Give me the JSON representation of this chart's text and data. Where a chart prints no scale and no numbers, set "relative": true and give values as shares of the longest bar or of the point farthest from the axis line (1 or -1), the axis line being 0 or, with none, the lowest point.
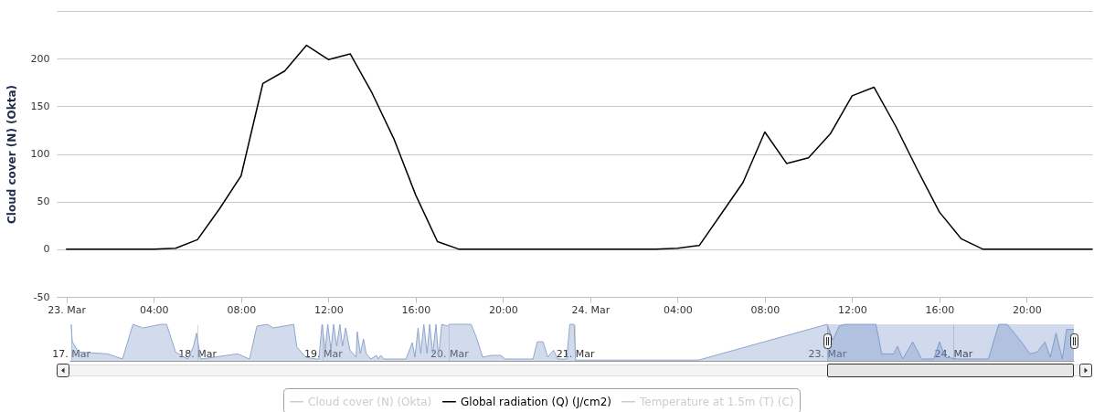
{
  "chart_data": [
    {
      "type": "line",
      "ylabel": "Cloud cover (N) (Okta)",
      "x": [
        "--03-23T00:00",
        "--03-23T01:00",
        "--03-23T02:00",
        "--03-23T03:00",
        "--03-23T04:00",
        "--03-23T05:00",
        "--03-23T06:00",
        "--03-23T07:00",
        "--03-23T08:00",
        "--03-23T09:00",
        "--03-23T10:00",
        "--03-23T11:00",
        "--03-23T12:00",
        "--03-23T13:00",
        "--03-23T14:00",
        "--03-23T15:00",
        "--03-23T16:00",
        "--03-23T17:00",
        "--03-23T18:00",
        "--03-23T19:00",
        "--03-23T20:00",
        "--03-23T21:00",
        "--03-23T22:00",
        "--03-23T23:00",
        "--03-24T00:00",
        "--03-24T01:00",
        "--03-24T02:00",
        "--03-24T03:00",
        "--03-24T04:00",
        "--03-24T05:00",
        "--03-24T06:00",
        "--03-24T07:00",
        "--03-24T08:00",
        "--03-24T09:00",
        "--03-24T10:00",
        "--03-24T11:00",
        "--03-24T12:00",
        "--03-24T13:00",
        "--03-24T14:00",
        "--03-24T15:00",
        "--03-24T16:00",
        "--03-24T17:00",
        "--03-24T18:00",
        "--03-24T19:00",
        "--03-24T20:00",
        "--03-24T21:00",
        "--03-24T22:00",
        "--03-24T23:00"
      ],
      "xlim": [
        "--03-22T23:33",
        "--03-24T23:00"
      ],
      "xticks": [
        {
          "value": "--03-23T00:00",
          "label": "23. Mar"
        },
        {
          "value": "--03-23T04:00",
          "label": "04:00"
        },
        {
          "value": "--03-23T08:00",
          "label": "08:00"
        },
        {
          "value": "--03-23T12:00",
          "label": "12:00"
        },
        {
          "value": "--03-23T16:00",
          "label": "16:00"
        },
        {
          "value": "--03-23T20:00",
          "label": "20:00"
        },
        {
          "value": "--03-24T00:00",
          "label": "24. Mar"
        },
        {
          "value": "--03-24T04:00",
          "label": "04:00"
        },
        {
          "value": "--03-24T08:00",
          "label": "08:00"
        },
        {
          "value": "--03-24T12:00",
          "label": "12:00"
        },
        {
          "value": "--03-24T16:00",
          "label": "16:00"
        },
        {
          "value": "--03-24T20:00",
          "label": "20:00"
        }
      ],
      "ylim": [
        -50,
        250
      ],
      "yticks": [
        -50,
        0,
        50,
        100,
        150,
        200,
        {
          "value": 250,
          "label": null
        }
      ],
      "grid": "y",
      "legend": "bottom",
      "series": [
        {
          "name": "Cloud cover (N) (Okta)",
          "color": "#cccccc",
          "values": [
            null,
            null,
            null,
            null,
            null,
            null,
            null,
            null,
            null,
            null,
            null,
            null,
            null,
            null,
            null,
            null,
            null,
            null,
            null,
            null,
            null,
            null,
            null,
            null,
            null,
            null,
            null,
            null,
            null,
            null,
            null,
            null,
            null,
            null,
            null,
            null,
            null,
            null,
            null,
            null,
            null,
            null,
            null,
            null,
            null,
            null,
            null,
            null
          ]
        },
        {
          "name": "Global radiation (Q) (J/cm2)",
          "color": "#000000",
          "values": [
            0,
            0,
            0,
            0,
            0,
            1,
            10,
            42,
            77,
            174,
            187,
            214,
            199,
            205,
            164,
            116,
            57,
            8,
            0,
            0,
            0,
            0,
            0,
            0,
            0,
            0,
            0,
            0,
            1,
            4,
            37,
            70,
            123,
            90,
            96,
            121,
            161,
            170,
            129,
            83,
            39,
            11,
            0,
            0,
            0,
            0,
            0,
            0
          ]
        },
        {
          "name": "Temperature at 1.5m (T) (C)",
          "color": "#cccccc",
          "values": [
            null,
            null,
            null,
            null,
            null,
            null,
            null,
            null,
            null,
            null,
            null,
            null,
            null,
            null,
            null,
            null,
            null,
            null,
            null,
            null,
            null,
            null,
            null,
            null,
            null,
            null,
            null,
            null,
            null,
            null,
            null,
            null,
            null,
            null,
            null,
            null,
            null,
            null,
            null,
            null,
            null,
            null,
            null,
            null,
            null,
            null,
            null,
            null
          ]
        }
      ]
    },
    {
      "type": "area",
      "relative": true,
      "color": "#8fa6cf",
      "tick_labels": "x",
      "grid": "x",
      "xlim": [
        "--03-16T23:42",
        "--03-24T23:00"
      ],
      "xticks": [
        {
          "value": "--03-17T00:00",
          "label": "17. Mar"
        },
        {
          "value": "--03-18T00:00",
          "label": "18. Mar"
        },
        {
          "value": "--03-19T00:00",
          "label": "19. Mar"
        },
        {
          "value": "--03-20T00:00",
          "label": "20. Mar"
        },
        {
          "value": "--03-21T00:00",
          "label": "21. Mar"
        },
        {
          "value": "--03-23T00:00",
          "label": "23. Mar"
        },
        {
          "value": "--03-24T00:00",
          "label": "24. Mar"
        }
      ],
      "bands": [
        {
          "axis": "x",
          "from": "--03-23T00:00",
          "to": "--03-24T23:00",
          "color": "#6685c2"
        }
      ],
      "x": [
        "--03-17T00:00",
        "--03-17T00:15",
        "--03-17T01:24",
        "--03-17T07:00",
        "--03-17T09:48",
        "--03-17T11:48",
        "--03-17T13:42",
        "--03-17T17:06",
        "--03-17T18:12",
        "--03-17T19:54",
        "--03-17T22:12",
        "--03-17T23:18",
        "--03-17T23:54",
        "--03-18T00:42",
        "--03-18T03:12",
        "--03-18T07:42",
        "--03-18T10:00",
        "--03-18T11:24",
        "--03-18T13:24",
        "--03-18T14:30",
        "--03-18T18:24",
        "--03-18T19:00",
        "--03-18T20:42",
        "--03-18T22:42",
        "--03-18T23:12",
        "--03-18T23:48",
        "--03-19T00:24",
        "--03-19T00:54",
        "--03-19T01:30",
        "--03-19T02:00",
        "--03-19T02:36",
        "--03-19T03:12",
        "--03-19T03:42",
        "--03-19T04:18",
        "--03-19T05:06",
        "--03-19T06:18",
        "--03-19T06:30",
        "--03-19T07:06",
        "--03-19T07:42",
        "--03-19T08:12",
        "--03-19T09:06",
        "--03-19T10:12",
        "--03-19T10:30",
        "--03-19T11:00",
        "--03-19T11:36",
        "--03-19T15:48",
        "--03-19T17:00",
        "--03-19T17:30",
        "--03-19T18:06",
        "--03-19T18:36",
        "--03-19T19:12",
        "--03-19T19:48",
        "--03-19T20:18",
        "--03-19T20:54",
        "--03-19T21:30",
        "--03-19T22:00",
        "--03-19T22:36",
        "--03-19T23:42",
        "--03-20T00:00",
        "--03-20T04:12",
        "--03-20T05:18",
        "--03-20T06:24",
        "--03-20T08:06",
        "--03-20T09:48",
        "--03-20T10:42",
        "--03-20T16:00",
        "--03-20T16:48",
        "--03-20T17:54",
        "--03-20T18:48",
        "--03-20T19:54",
        "--03-20T20:42",
        "--03-20T22:24",
        "--03-20T23:00",
        "--03-20T23:48",
        "--03-21T00:06",
        "--03-21T23:30",
        "--03-23T00:00",
        "--03-23T01:06",
        "--03-23T02:18",
        "--03-23T03:24",
        "--03-23T09:18",
        "--03-23T10:24",
        "--03-23T12:42",
        "--03-23T13:24",
        "--03-23T14:24",
        "--03-23T16:18",
        "--03-23T18:00",
        "--03-23T20:18",
        "--03-23T21:24",
        "--03-23T22:30",
        "--03-24T00:48",
        "--03-24T06:42",
        "--03-24T08:42",
        "--03-24T10:18",
        "--03-24T13:12",
        "--03-24T14:36",
        "--03-24T16:00",
        "--03-24T17:30",
        "--03-24T18:30",
        "--03-24T19:36",
        "--03-24T20:48",
        "--03-24T21:36",
        "--03-24T23:00"
      ],
      "values": [
        1,
        0.52,
        0.24,
        0.19,
        0.05,
        1,
        0.9,
        1,
        1,
        0.24,
        0.05,
        0.38,
        0.76,
        0.05,
        0.1,
        0.19,
        0.05,
        0.95,
        1,
        0.9,
        1,
        0.38,
        0.1,
        0.05,
        0.05,
        1,
        0.3,
        1,
        0.3,
        1,
        0.4,
        1,
        0.4,
        0.9,
        0.3,
        0.1,
        0.8,
        0.2,
        0.6,
        0.2,
        0.05,
        0.15,
        0.05,
        0.15,
        0.05,
        0.05,
        0.5,
        0.1,
        0.9,
        0.2,
        1,
        0.2,
        1,
        0.2,
        1,
        0.1,
        1,
        0.95,
        1,
        1,
        0.6,
        0.1,
        0.15,
        0.15,
        0.05,
        0.05,
        0.52,
        0.52,
        0.1,
        0.29,
        0.05,
        0.05,
        1,
        1,
        0.02,
        0.02,
        1,
        0.57,
        0.95,
        1,
        1,
        0.19,
        0.19,
        0.4,
        0.05,
        0.52,
        0.05,
        0.05,
        0.52,
        0.1,
        0.05,
        0.05,
        1,
        1,
        0.48,
        0.19,
        0.24,
        0.52,
        0.1,
        0.76,
        0.05,
        0.86,
        0.86
      ]
    }
  ]
}
